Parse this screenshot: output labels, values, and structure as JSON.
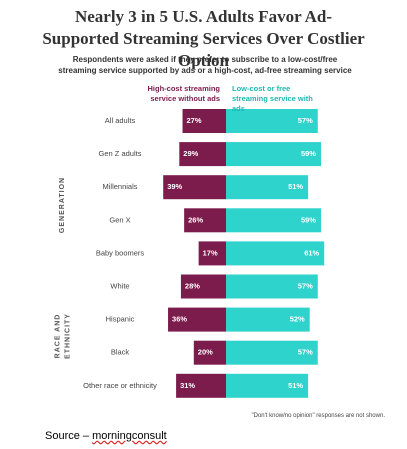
{
  "chart_data": {
    "type": "diverging-bar",
    "title": "Nearly 3 in 5 U.S. Adults Favor Ad-Supported Streaming Services Over Costlier Option",
    "subtitle": "Respondents were asked if they prefer to subscribe to a low-cost/free streaming service supported by ads or a high-cost, ad-free streaming service",
    "categories": [
      "All adults",
      "Gen Z adults",
      "Millennials",
      "Gen X",
      "Baby boomers",
      "White",
      "Hispanic",
      "Black",
      "Other race or ethnicity"
    ],
    "group_labels": [
      "GENERATION",
      "RACE AND ETHNICITY"
    ],
    "series": [
      {
        "name": "High-cost streaming service without ads",
        "color": "#7b1c4c",
        "values": [
          27,
          29,
          39,
          26,
          17,
          28,
          36,
          20,
          31
        ],
        "value_labels": [
          "27%",
          "29%",
          "39%",
          "26%",
          "17%",
          "28%",
          "36%",
          "20%",
          "31%"
        ]
      },
      {
        "name": "Low-cost or free streaming service with ads",
        "color": "#2ed3cb",
        "values": [
          57,
          59,
          51,
          59,
          61,
          57,
          52,
          57,
          51
        ],
        "value_labels": [
          "57%",
          "59%",
          "51%",
          "59%",
          "61%",
          "57%",
          "52%",
          "57%",
          "51%"
        ]
      }
    ],
    "note": "\"Don't know/no opinion\" responses are not shown.",
    "source": {
      "prefix": "Source –",
      "site": "morningconsult"
    }
  }
}
